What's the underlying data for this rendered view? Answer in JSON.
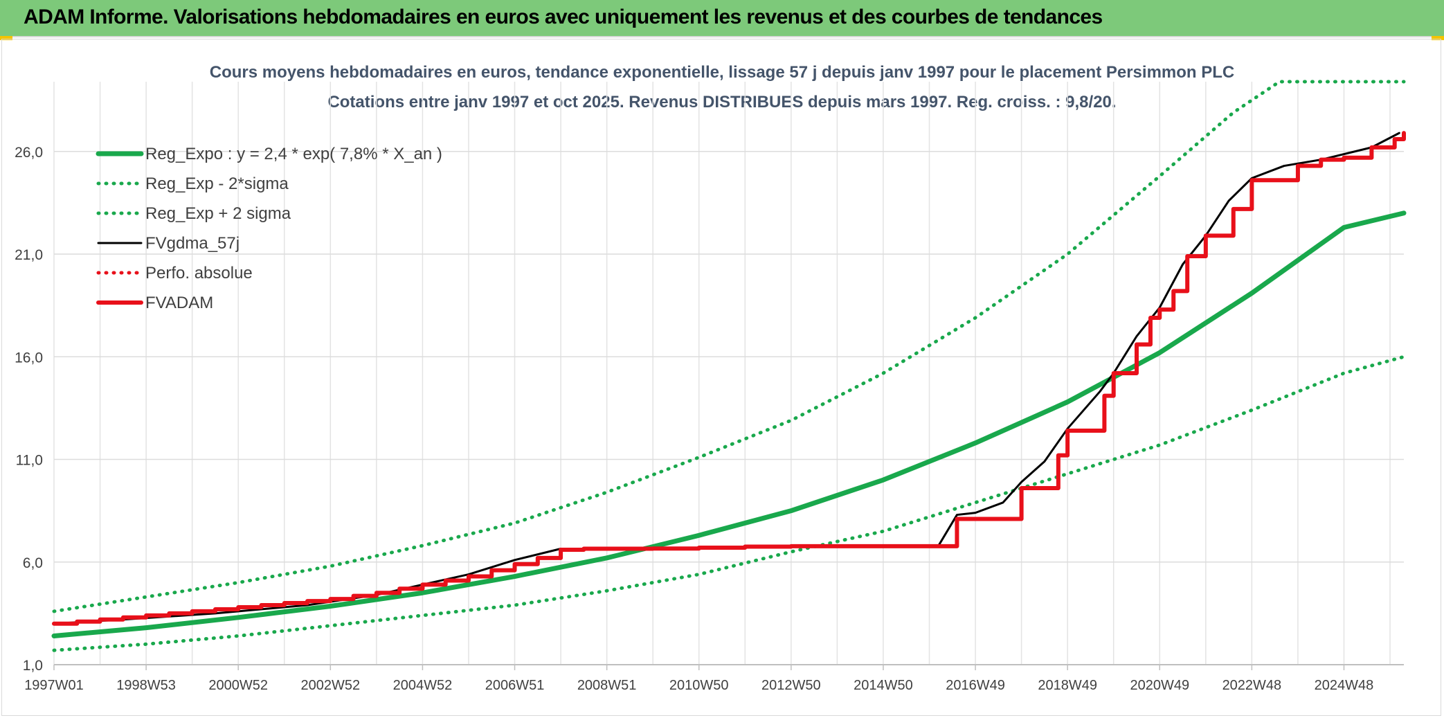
{
  "header": {
    "title": "ADAM Informe. Valorisations hebdomadaires en euros avec uniquement les revenus et des courbes de tendances"
  },
  "chart_data": {
    "type": "line",
    "title": "Cours moyens hebdomadaires en euros, tendance exponentielle, lissage 57 j depuis janv 1997 pour le placement Persimmon PLC",
    "subtitle": "Cotations entre janv 1997 et oct 2025. Revenus DISTRIBUES depuis mars 1997. Reg. croiss. : 9,8/20.",
    "x_tick_labels": [
      "1997W01",
      "1998W53",
      "2000W52",
      "2002W52",
      "2004W52",
      "2006W51",
      "2008W51",
      "2010W50",
      "2012W50",
      "2014W50",
      "2016W49",
      "2018W49",
      "2020W49",
      "2022W48",
      "2024W48"
    ],
    "x_tick_years": [
      1997.0,
      1999.0,
      2001.0,
      2003.0,
      2005.0,
      2007.0,
      2009.0,
      2011.0,
      2013.0,
      2015.0,
      2017.0,
      2019.0,
      2021.0,
      2023.0,
      2025.0
    ],
    "y_tick_labels": [
      "1,0",
      "6,0",
      "11,0",
      "16,0",
      "21,0",
      "26,0"
    ],
    "y_ticks": [
      1,
      6,
      11,
      16,
      21,
      26
    ],
    "xlim": [
      1997.0,
      2026.3
    ],
    "ylim": [
      1,
      29.4
    ],
    "legend_position": "top-left",
    "series": [
      {
        "name": "Reg_Expo : y = 2,4 * exp( 7,8% *  X_an )",
        "color": "#19a84c",
        "style": "solid-thick",
        "x": [
          1997.0,
          1999.0,
          2001.0,
          2003.0,
          2005.0,
          2007.0,
          2009.0,
          2011.0,
          2013.0,
          2015.0,
          2017.0,
          2019.0,
          2021.0,
          2023.0,
          2025.0,
          2026.3
        ],
        "y": [
          2.4,
          2.8,
          3.3,
          3.85,
          4.5,
          5.3,
          6.2,
          7.3,
          8.5,
          10.0,
          11.8,
          13.8,
          16.2,
          19.1,
          22.3,
          23.0
        ]
      },
      {
        "name": "Reg_Exp - 2*sigma",
        "color": "#19a84c",
        "style": "dotted",
        "x": [
          1997.0,
          1999.0,
          2001.0,
          2003.0,
          2005.0,
          2007.0,
          2009.0,
          2011.0,
          2013.0,
          2015.0,
          2017.0,
          2019.0,
          2021.0,
          2023.0,
          2025.0,
          2026.3
        ],
        "y": [
          1.7,
          2.0,
          2.4,
          2.9,
          3.4,
          3.9,
          4.6,
          5.4,
          6.5,
          7.5,
          8.9,
          10.3,
          11.7,
          13.4,
          15.2,
          16.0
        ]
      },
      {
        "name": "Reg_Exp + 2 sigma",
        "color": "#19a84c",
        "style": "dotted",
        "x": [
          1997.0,
          1999.0,
          2001.0,
          2003.0,
          2005.0,
          2007.0,
          2009.0,
          2011.0,
          2013.0,
          2015.0,
          2017.0,
          2019.0,
          2021.0,
          2022.6,
          2023.6,
          2026.3
        ],
        "y": [
          3.6,
          4.3,
          5.0,
          5.8,
          6.8,
          7.9,
          9.4,
          11.1,
          12.9,
          15.2,
          17.9,
          21.0,
          24.8,
          27.9,
          29.4,
          29.4
        ]
      },
      {
        "name": "FVgdma_57j",
        "color": "#000000",
        "style": "solid-thin",
        "x": [
          1997.0,
          1998.5,
          2000.5,
          2002.5,
          2004.0,
          2005.0,
          2006.0,
          2007.0,
          2008.0,
          2009.0,
          2010.0,
          2011.0,
          2012.0,
          2013.0,
          2014.0,
          2015.0,
          2016.2,
          2016.6,
          2017.0,
          2017.6,
          2018.0,
          2018.5,
          2019.0,
          2019.7,
          2020.0,
          2020.5,
          2021.0,
          2021.5,
          2022.0,
          2022.5,
          2023.0,
          2023.7,
          2024.5,
          2025.6,
          2026.2
        ],
        "y": [
          3.0,
          3.2,
          3.5,
          3.9,
          4.4,
          4.9,
          5.4,
          6.1,
          6.65,
          6.65,
          6.66,
          6.7,
          6.75,
          6.76,
          6.77,
          6.77,
          6.8,
          8.3,
          8.4,
          8.9,
          9.9,
          10.9,
          12.5,
          14.3,
          15.2,
          17.0,
          18.4,
          20.5,
          21.9,
          23.6,
          24.7,
          25.3,
          25.6,
          26.2,
          26.9
        ]
      },
      {
        "name": "Perfo. absolue",
        "color": "#e8101a",
        "style": "dotted",
        "x": [],
        "y": []
      },
      {
        "name": "FVADAM",
        "color": "#e8101a",
        "style": "step-thick",
        "x": [
          1997.0,
          1997.5,
          1998.0,
          1998.5,
          1999.0,
          1999.5,
          2000.0,
          2000.5,
          2001.0,
          2001.5,
          2002.0,
          2002.5,
          2003.0,
          2003.5,
          2004.0,
          2004.5,
          2005.0,
          2005.5,
          2006.0,
          2006.5,
          2007.0,
          2007.5,
          2008.0,
          2008.5,
          2009.0,
          2010.0,
          2011.0,
          2012.0,
          2013.0,
          2014.0,
          2015.0,
          2016.0,
          2016.6,
          2017.0,
          2017.5,
          2018.0,
          2018.5,
          2018.8,
          2019.0,
          2019.5,
          2019.8,
          2020.0,
          2020.3,
          2020.5,
          2020.8,
          2021.0,
          2021.3,
          2021.6,
          2022.0,
          2022.3,
          2022.6,
          2023.0,
          2023.5,
          2024.0,
          2024.5,
          2025.0,
          2025.6,
          2026.1,
          2026.3
        ],
        "y": [
          3.0,
          3.1,
          3.2,
          3.3,
          3.4,
          3.5,
          3.6,
          3.7,
          3.8,
          3.9,
          4.0,
          4.1,
          4.2,
          4.35,
          4.5,
          4.7,
          4.9,
          5.1,
          5.3,
          5.6,
          5.9,
          6.2,
          6.6,
          6.65,
          6.65,
          6.66,
          6.7,
          6.75,
          6.77,
          6.77,
          6.77,
          6.77,
          8.1,
          8.1,
          8.1,
          9.6,
          9.6,
          11.2,
          12.4,
          12.4,
          14.1,
          15.2,
          15.2,
          16.6,
          17.9,
          18.3,
          19.2,
          20.9,
          21.9,
          21.9,
          23.2,
          24.6,
          24.6,
          25.3,
          25.6,
          25.7,
          26.2,
          26.6,
          26.9
        ]
      }
    ]
  }
}
